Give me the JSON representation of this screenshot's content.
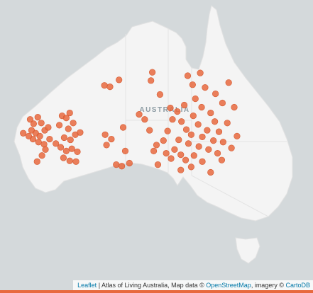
{
  "map": {
    "label": "AUSTRALIA",
    "occurrences": [
      [
        115.8,
        -25.5
      ],
      [
        116.3,
        -26.1
      ],
      [
        116.9,
        -25.2
      ],
      [
        117.4,
        -26.0
      ],
      [
        116.0,
        -27.0
      ],
      [
        116.6,
        -27.4
      ],
      [
        117.2,
        -27.8
      ],
      [
        117.9,
        -27.0
      ],
      [
        118.4,
        -26.6
      ],
      [
        116.2,
        -28.2
      ],
      [
        117.0,
        -28.6
      ],
      [
        117.8,
        -28.9
      ],
      [
        118.6,
        -28.2
      ],
      [
        115.6,
        -27.8
      ],
      [
        118.0,
        -29.6
      ],
      [
        117.5,
        -30.4
      ],
      [
        120.4,
        -25.0
      ],
      [
        121.0,
        -25.3
      ],
      [
        121.5,
        -24.6
      ],
      [
        120.0,
        -26.3
      ],
      [
        121.3,
        -26.8
      ],
      [
        122.0,
        -26.0
      ],
      [
        120.7,
        -28.0
      ],
      [
        121.6,
        -28.3
      ],
      [
        122.3,
        -27.6
      ],
      [
        120.2,
        -29.3
      ],
      [
        121.0,
        -29.8
      ],
      [
        121.8,
        -29.5
      ],
      [
        122.6,
        -29.9
      ],
      [
        120.6,
        -30.7
      ],
      [
        121.5,
        -31.1
      ],
      [
        122.4,
        -31.2
      ],
      [
        119.5,
        -28.8
      ],
      [
        123.0,
        -27.3
      ],
      [
        116.8,
        -31.2
      ],
      [
        114.8,
        -27.4
      ],
      [
        128.2,
        -31.6
      ],
      [
        129.0,
        -31.8
      ],
      [
        130.1,
        -31.4
      ],
      [
        134.2,
        -31.6
      ],
      [
        126.8,
        -29.0
      ],
      [
        126.6,
        -27.6
      ],
      [
        127.5,
        -28.2
      ],
      [
        129.2,
        -26.6
      ],
      [
        129.5,
        -29.8
      ],
      [
        126.5,
        -20.7
      ],
      [
        127.3,
        -20.9
      ],
      [
        128.6,
        -19.9
      ],
      [
        131.5,
        -24.8
      ],
      [
        132.3,
        -25.5
      ],
      [
        133.0,
        -27.0
      ],
      [
        134.0,
        -29.0
      ],
      [
        133.6,
        -29.8
      ],
      [
        135.0,
        -28.4
      ],
      [
        135.6,
        -27.1
      ],
      [
        136.3,
        -25.5
      ],
      [
        136.0,
        -23.9
      ],
      [
        137.0,
        -24.4
      ],
      [
        137.6,
        -25.8
      ],
      [
        138.3,
        -26.9
      ],
      [
        139.0,
        -27.6
      ],
      [
        138.6,
        -28.8
      ],
      [
        137.2,
        -28.3
      ],
      [
        136.6,
        -29.6
      ],
      [
        135.4,
        -30.1
      ],
      [
        136.1,
        -30.8
      ],
      [
        137.5,
        -30.3
      ],
      [
        138.2,
        -31.0
      ],
      [
        139.4,
        -30.4
      ],
      [
        140.1,
        -29.2
      ],
      [
        140.6,
        -27.9
      ],
      [
        141.3,
        -27.0
      ],
      [
        140.0,
        -26.2
      ],
      [
        139.3,
        -25.0
      ],
      [
        138.0,
        -23.5
      ],
      [
        139.6,
        -22.6
      ],
      [
        140.5,
        -23.8
      ],
      [
        141.8,
        -24.6
      ],
      [
        142.4,
        -25.8
      ],
      [
        143.0,
        -27.2
      ],
      [
        142.2,
        -28.4
      ],
      [
        141.5,
        -29.6
      ],
      [
        142.8,
        -30.1
      ],
      [
        143.6,
        -28.6
      ],
      [
        144.2,
        -26.0
      ],
      [
        143.5,
        -23.2
      ],
      [
        142.5,
        -21.9
      ],
      [
        141.0,
        -21.0
      ],
      [
        139.2,
        -20.6
      ],
      [
        138.5,
        -19.3
      ],
      [
        140.3,
        -18.9
      ],
      [
        144.4,
        -20.3
      ],
      [
        145.2,
        -23.8
      ],
      [
        145.6,
        -27.8
      ],
      [
        144.8,
        -29.4
      ],
      [
        141.8,
        -32.6
      ],
      [
        137.5,
        -32.3
      ],
      [
        139.0,
        -31.9
      ],
      [
        134.5,
        -22.0
      ],
      [
        133.2,
        -20.0
      ],
      [
        133.4,
        -18.8
      ],
      [
        140.6,
        -31.2
      ],
      [
        143.4,
        -31.0
      ]
    ]
  },
  "attribution": {
    "leaflet": "Leaflet",
    "text1": "| Atlas of Living Australia, Map data ©",
    "osm": "OpenStreetMap",
    "text2": ", imagery ©",
    "carto": "CartoDB"
  }
}
